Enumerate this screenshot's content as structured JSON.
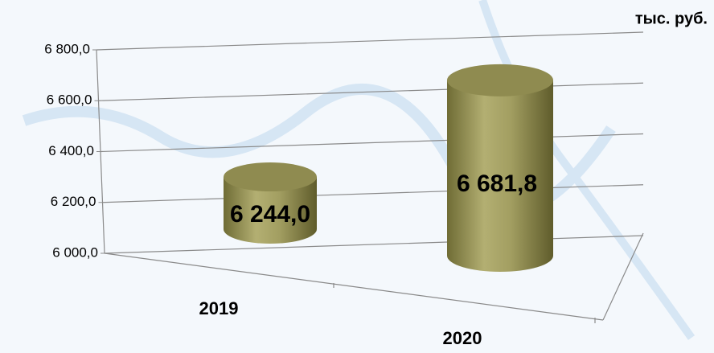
{
  "chart_data": {
    "type": "bar",
    "unit": "тыс. руб.",
    "categories": [
      "2019",
      "2020"
    ],
    "values": [
      6244.0,
      6681.8
    ],
    "value_labels": [
      "6 244,0",
      "6 681,8"
    ],
    "color": "#a9a56a",
    "ylim": [
      6000,
      6800
    ],
    "yticks": [
      {
        "value": 6000,
        "label": "6 000,0"
      },
      {
        "value": 6200,
        "label": "6 200,0"
      },
      {
        "value": 6400,
        "label": "6 400,0"
      },
      {
        "value": 6600,
        "label": "6 600,0"
      },
      {
        "value": 6800,
        "label": "6 800,0"
      }
    ],
    "grid": true
  }
}
